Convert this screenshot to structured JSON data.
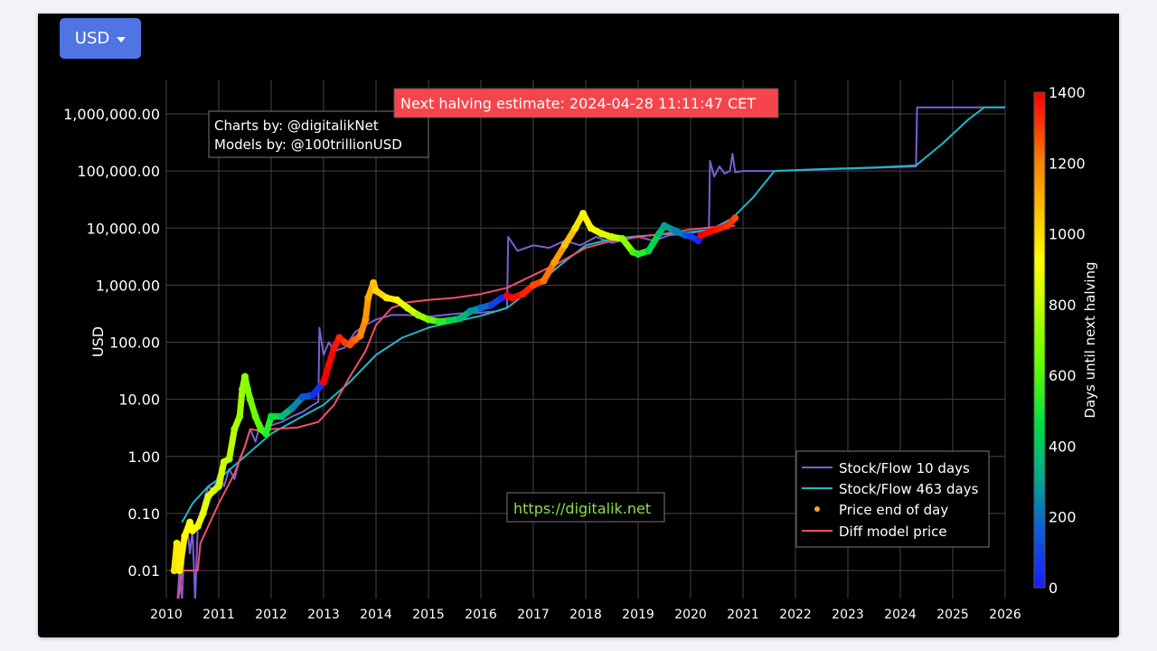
{
  "currency_selector": {
    "label": "USD",
    "icon": "caret-down-icon"
  },
  "annotations": {
    "credits_line1": "Charts by: @digitalikNet",
    "credits_line2": "Models by: @100trillionUSD",
    "halving_banner": "Next halving estimate: 2024-04-28 11:11:47 CET",
    "website": "https://digitalik.net"
  },
  "colors": {
    "background": "#000000",
    "grid": "#444444",
    "sf10": "#7b5fd6",
    "sf463": "#1fb8c8",
    "diff_model": "#f0506a",
    "banner": "#f5454c",
    "website_text": "#8be04a",
    "button": "#4f74e3"
  },
  "chart_data": {
    "type": "scatter",
    "title": "",
    "xlabel": "",
    "ylabel": "USD",
    "yscale": "log",
    "xlim": [
      2010,
      2026
    ],
    "ylim": [
      0.003,
      2000000
    ],
    "x_ticks": [
      "2010",
      "2011",
      "2012",
      "2013",
      "2014",
      "2015",
      "2016",
      "2017",
      "2018",
      "2019",
      "2020",
      "2021",
      "2022",
      "2023",
      "2024",
      "2025",
      "2026"
    ],
    "y_ticks": [
      "0.01",
      "0.10",
      "1.00",
      "10.00",
      "100.00",
      "1,000.00",
      "10,000.00",
      "100,000.00",
      "1,000,000.00"
    ],
    "grid": true,
    "legend_position": "lower right",
    "legend": [
      "Stock/Flow 10 days",
      "Stock/Flow 463 days",
      "Price end of day",
      "Diff model price"
    ],
    "colorbar": {
      "title": "Days until next halving",
      "ticks": [
        "0",
        "200",
        "400",
        "600",
        "800",
        "1000",
        "1200",
        "1400"
      ],
      "range": [
        0,
        1400
      ],
      "colorscale": [
        "#1a1aff",
        "#0a60d8",
        "#00a890",
        "#00e040",
        "#60ff00",
        "#c8ff00",
        "#ffff00",
        "#ffc000",
        "#ff8000",
        "#ff3000",
        "#ff0000"
      ]
    },
    "series": [
      {
        "name": "Stock/Flow 10 days",
        "type": "line",
        "x": [
          2010.2,
          2010.25,
          2010.3,
          2010.35,
          2010.4,
          2010.45,
          2010.5,
          2010.55,
          2010.6,
          2010.7,
          2010.8,
          2010.9,
          2011.0,
          2011.1,
          2011.2,
          2011.3,
          2011.4,
          2011.5,
          2011.6,
          2011.7,
          2011.8,
          2011.9,
          2012.0,
          2012.2,
          2012.4,
          2012.6,
          2012.8,
          2012.9,
          2012.92,
          2013.0,
          2013.1,
          2013.2,
          2013.4,
          2013.6,
          2013.8,
          2014.0,
          2014.3,
          2014.6,
          2015.0,
          2015.3,
          2015.6,
          2016.0,
          2016.3,
          2016.5,
          2016.52,
          2016.7,
          2017.0,
          2017.3,
          2017.6,
          2017.9,
          2018.2,
          2018.5,
          2018.8,
          2019.0,
          2019.3,
          2019.6,
          2019.9,
          2020.1,
          2020.3,
          2020.35,
          2020.37,
          2020.45,
          2020.55,
          2020.65,
          2020.75,
          2020.8,
          2020.85,
          2021.0,
          2021.6,
          2024.3,
          2024.32,
          2026.0
        ],
        "y": [
          0.002,
          0.01,
          0.003,
          0.04,
          0.06,
          0.02,
          0.05,
          0.003,
          0.06,
          0.15,
          0.3,
          0.25,
          0.5,
          0.3,
          0.6,
          0.4,
          0.9,
          1.5,
          3,
          1.8,
          4,
          2.5,
          3.5,
          4,
          5,
          6,
          8,
          9,
          180,
          60,
          100,
          70,
          80,
          150,
          200,
          250,
          300,
          300,
          280,
          300,
          320,
          330,
          350,
          400,
          7000,
          4000,
          5000,
          4500,
          6000,
          5000,
          7000,
          5500,
          6500,
          7000,
          6000,
          7500,
          8000,
          8500,
          9000,
          10000,
          150000,
          80000,
          120000,
          90000,
          100000,
          200000,
          95000,
          100000,
          100000,
          120000,
          1300000,
          1300000
        ]
      },
      {
        "name": "Stock/Flow 463 days",
        "type": "line",
        "x": [
          2010.3,
          2010.5,
          2010.8,
          2011.0,
          2011.5,
          2012.0,
          2012.5,
          2013.0,
          2013.5,
          2014.0,
          2014.5,
          2015.0,
          2015.5,
          2016.0,
          2016.5,
          2017.0,
          2017.5,
          2018.0,
          2018.5,
          2019.0,
          2019.5,
          2020.0,
          2020.4,
          2020.8,
          2021.2,
          2021.6,
          2022.5,
          2023.5,
          2024.3,
          2024.8,
          2025.3,
          2025.6,
          2026.0
        ],
        "y": [
          0.07,
          0.15,
          0.3,
          0.4,
          1.0,
          2.5,
          4.5,
          8,
          20,
          60,
          120,
          180,
          230,
          290,
          400,
          900,
          2200,
          5000,
          6500,
          7200,
          7800,
          8500,
          9500,
          15000,
          35000,
          100000,
          108000,
          115000,
          125000,
          300000,
          800000,
          1300000,
          1300000
        ]
      },
      {
        "name": "Diff model price",
        "type": "line",
        "x": [
          2010.2,
          2010.3,
          2010.6,
          2010.65,
          2010.8,
          2011.0,
          2011.3,
          2011.5,
          2011.6,
          2011.8,
          2012.0,
          2012.5,
          2012.9,
          2013.2,
          2013.5,
          2013.8,
          2014.0,
          2014.3,
          2014.6,
          2015.0,
          2015.5,
          2016.0,
          2016.5,
          2017.0,
          2017.5,
          2018.0,
          2018.5,
          2019.0,
          2019.5,
          2020.0,
          2020.5,
          2020.85
        ],
        "y": [
          0.002,
          0.01,
          0.01,
          0.03,
          0.06,
          0.15,
          0.5,
          1.5,
          3,
          2.8,
          3,
          3.2,
          4,
          8,
          25,
          70,
          200,
          400,
          500,
          550,
          600,
          700,
          900,
          1500,
          2500,
          4500,
          6000,
          7000,
          8000,
          9500,
          10500,
          11000
        ]
      },
      {
        "name": "Price end of day",
        "type": "scatter",
        "x": [
          2010.15,
          2010.2,
          2010.25,
          2010.35,
          2010.45,
          2010.5,
          2010.6,
          2010.7,
          2010.8,
          2010.9,
          2011.0,
          2011.1,
          2011.2,
          2011.3,
          2011.4,
          2011.45,
          2011.5,
          2011.55,
          2011.6,
          2011.7,
          2011.8,
          2011.9,
          2012.0,
          2012.2,
          2012.4,
          2012.6,
          2012.8,
          2013.0,
          2013.1,
          2013.2,
          2013.3,
          2013.4,
          2013.5,
          2013.6,
          2013.7,
          2013.8,
          2013.85,
          2013.95,
          2014.0,
          2014.2,
          2014.4,
          2014.6,
          2014.8,
          2015.0,
          2015.2,
          2015.4,
          2015.6,
          2015.8,
          2016.0,
          2016.2,
          2016.4,
          2016.5,
          2016.6,
          2016.8,
          2017.0,
          2017.2,
          2017.4,
          2017.6,
          2017.8,
          2017.95,
          2018.1,
          2018.3,
          2018.5,
          2018.7,
          2018.9,
          2019.0,
          2019.2,
          2019.4,
          2019.5,
          2019.7,
          2019.9,
          2020.0,
          2020.15,
          2020.2,
          2020.35,
          2020.5,
          2020.7,
          2020.85
        ],
        "y": [
          0.01,
          0.03,
          0.01,
          0.04,
          0.07,
          0.05,
          0.06,
          0.1,
          0.2,
          0.25,
          0.3,
          0.8,
          0.9,
          3,
          5,
          15,
          25,
          15,
          10,
          5,
          3,
          2.5,
          5,
          5,
          7,
          11,
          12,
          20,
          40,
          80,
          120,
          100,
          90,
          110,
          130,
          250,
          600,
          1100,
          800,
          600,
          550,
          400,
          300,
          250,
          230,
          240,
          260,
          350,
          400,
          450,
          600,
          650,
          600,
          700,
          1000,
          1200,
          2500,
          5000,
          10000,
          18000,
          10000,
          8000,
          7000,
          6500,
          3800,
          3500,
          4000,
          8000,
          11000,
          9000,
          7500,
          7200,
          6000,
          7500,
          8500,
          9500,
          11000,
          15000
        ],
        "days_until_halving": [
          900,
          880,
          870,
          850,
          830,
          820,
          800,
          780,
          760,
          740,
          720,
          700,
          680,
          660,
          640,
          630,
          620,
          600,
          580,
          560,
          520,
          480,
          420,
          320,
          220,
          120,
          40,
          1400,
          1380,
          1340,
          1280,
          1240,
          1200,
          1160,
          1100,
          1060,
          1020,
          980,
          940,
          880,
          800,
          720,
          640,
          560,
          480,
          400,
          320,
          240,
          160,
          80,
          20,
          1400,
          1380,
          1300,
          1220,
          1140,
          1060,
          980,
          900,
          860,
          820,
          760,
          700,
          620,
          520,
          480,
          400,
          320,
          260,
          200,
          120,
          60,
          20,
          1400,
          1380,
          1320,
          1260,
          1220
        ]
      }
    ]
  }
}
